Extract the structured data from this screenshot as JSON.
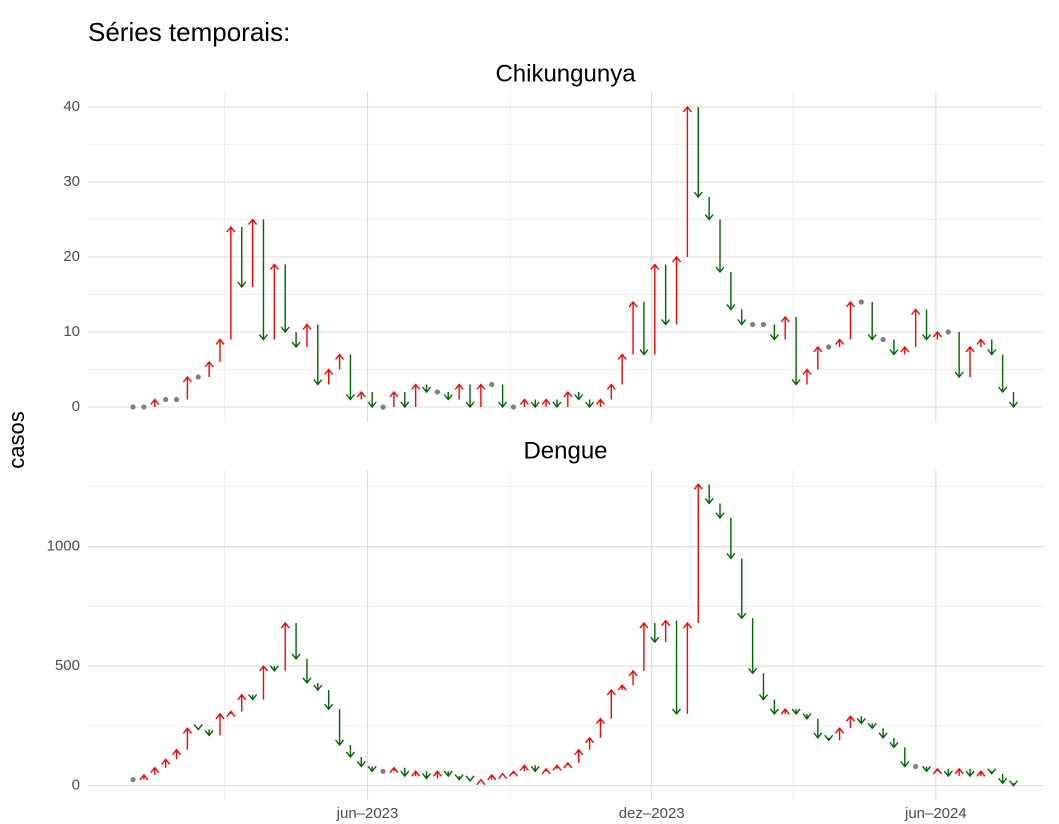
{
  "chart_data": {
    "type": "arrow",
    "title": "Séries temporais:",
    "y_label": "casos",
    "colors": {
      "up": "#ff0000",
      "down": "#006400",
      "same": "#808080"
    },
    "grid": true,
    "x": [
      "2023-01-01",
      "2023-01-08",
      "2023-01-15",
      "2023-01-22",
      "2023-01-29",
      "2023-02-05",
      "2023-02-12",
      "2023-02-19",
      "2023-02-26",
      "2023-03-05",
      "2023-03-12",
      "2023-03-19",
      "2023-03-26",
      "2023-04-02",
      "2023-04-09",
      "2023-04-16",
      "2023-04-23",
      "2023-04-30",
      "2023-05-07",
      "2023-05-14",
      "2023-05-21",
      "2023-05-28",
      "2023-06-04",
      "2023-06-11",
      "2023-06-18",
      "2023-06-25",
      "2023-07-02",
      "2023-07-09",
      "2023-07-16",
      "2023-07-23",
      "2023-07-30",
      "2023-08-06",
      "2023-08-13",
      "2023-08-20",
      "2023-08-27",
      "2023-09-03",
      "2023-09-10",
      "2023-09-17",
      "2023-09-24",
      "2023-10-01",
      "2023-10-08",
      "2023-10-15",
      "2023-10-22",
      "2023-10-29",
      "2023-11-05",
      "2023-11-12",
      "2023-11-19",
      "2023-11-26",
      "2023-12-03",
      "2023-12-10",
      "2023-12-17",
      "2023-12-24",
      "2023-12-31",
      "2024-01-07",
      "2024-01-14",
      "2024-01-21",
      "2024-01-28",
      "2024-02-04",
      "2024-02-11",
      "2024-02-18",
      "2024-02-25",
      "2024-03-03",
      "2024-03-10",
      "2024-03-17",
      "2024-03-24",
      "2024-03-31",
      "2024-04-07",
      "2024-04-14",
      "2024-04-21",
      "2024-04-28",
      "2024-05-05",
      "2024-05-12",
      "2024-05-19",
      "2024-05-26",
      "2024-06-02",
      "2024-06-09",
      "2024-06-16",
      "2024-06-23",
      "2024-06-30",
      "2024-07-07",
      "2024-07-14",
      "2024-07-21"
    ],
    "xlim": [
      "2022-12-03",
      "2024-08-09"
    ],
    "xticks": [
      {
        "value": "2023-06-01",
        "label": "jun–2023"
      },
      {
        "value": "2023-12-01",
        "label": "dez–2023"
      },
      {
        "value": "2024-06-01",
        "label": "jun–2024"
      }
    ],
    "x_minor_grid": [
      "2023-03-01",
      "2023-09-01",
      "2024-03-01"
    ],
    "facets": [
      {
        "title": "Chikungunya",
        "ylim": [
          -2,
          42
        ],
        "yticks": [
          0,
          10,
          20,
          30,
          40
        ],
        "values": [
          0,
          0,
          1,
          1,
          1,
          4,
          4,
          6,
          9,
          24,
          16,
          25,
          9,
          19,
          10,
          8,
          11,
          3,
          5,
          7,
          1,
          2,
          0,
          0,
          2,
          0,
          3,
          2,
          2,
          1,
          3,
          0,
          3,
          3,
          0,
          0,
          1,
          0,
          1,
          0,
          2,
          1,
          0,
          1,
          3,
          7,
          14,
          7,
          19,
          11,
          20,
          40,
          28,
          25,
          18,
          13,
          11,
          11,
          11,
          9,
          12,
          3,
          5,
          8,
          8,
          9,
          14,
          14,
          9,
          9,
          7,
          8,
          13,
          9,
          10,
          10,
          4,
          8,
          9,
          7,
          2,
          0
        ]
      },
      {
        "title": "Dengue",
        "ylim": [
          -60,
          1320
        ],
        "yticks": [
          0,
          500,
          1000
        ],
        "values": [
          25,
          45,
          75,
          110,
          150,
          240,
          235,
          210,
          300,
          310,
          380,
          360,
          500,
          480,
          680,
          530,
          430,
          400,
          320,
          170,
          120,
          80,
          60,
          60,
          75,
          40,
          60,
          30,
          60,
          40,
          25,
          20,
          25,
          45,
          50,
          60,
          85,
          60,
          70,
          85,
          95,
          150,
          200,
          280,
          400,
          420,
          480,
          680,
          600,
          690,
          300,
          680,
          1260,
          1180,
          1120,
          950,
          700,
          470,
          360,
          300,
          320,
          300,
          280,
          200,
          190,
          240,
          290,
          260,
          240,
          200,
          160,
          80,
          80,
          60,
          70,
          40,
          70,
          40,
          60,
          50,
          10,
          0
        ]
      }
    ]
  }
}
